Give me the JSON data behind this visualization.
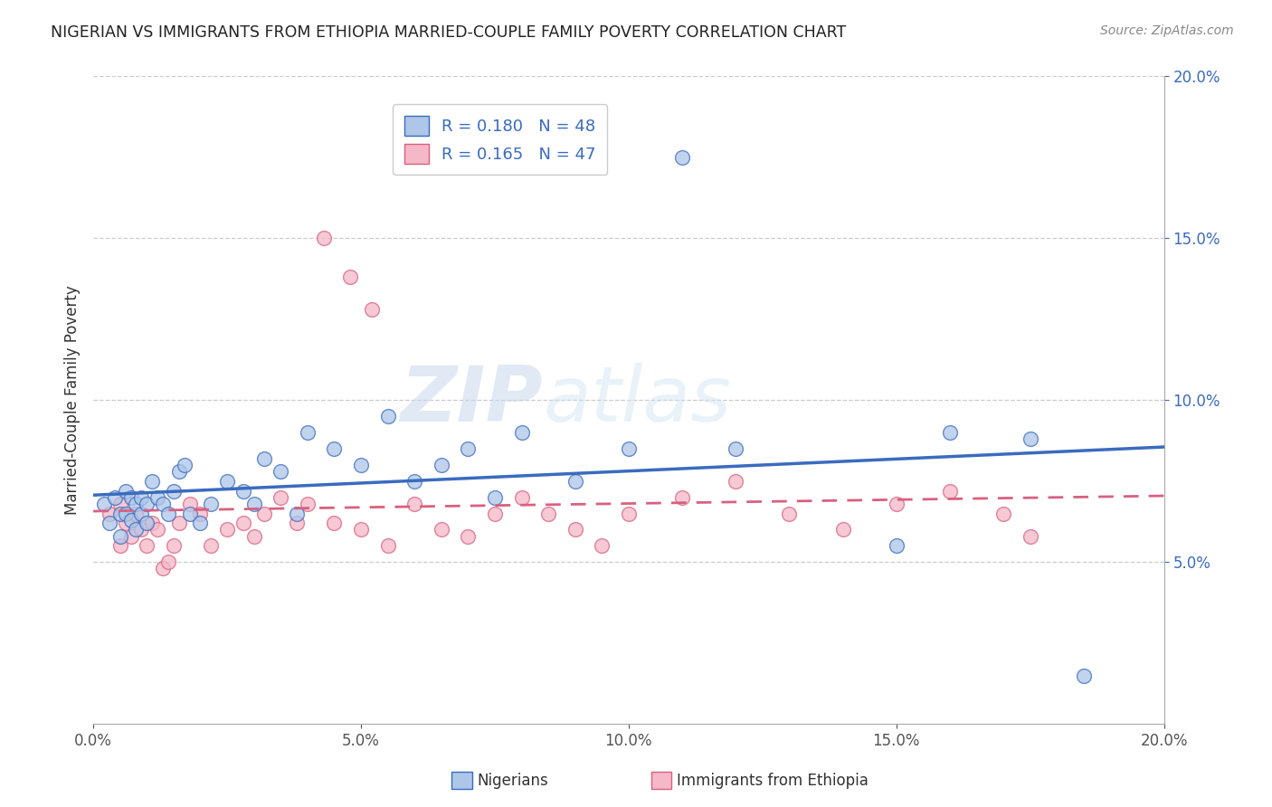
{
  "title": "NIGERIAN VS IMMIGRANTS FROM ETHIOPIA MARRIED-COUPLE FAMILY POVERTY CORRELATION CHART",
  "source": "Source: ZipAtlas.com",
  "ylabel": "Married-Couple Family Poverty",
  "xmin": 0.0,
  "xmax": 0.2,
  "ymin": 0.0,
  "ymax": 0.2,
  "xticks": [
    0.0,
    0.05,
    0.1,
    0.15,
    0.2
  ],
  "yticks": [
    0.05,
    0.1,
    0.15,
    0.2
  ],
  "xtick_labels": [
    "0.0%",
    "5.0%",
    "10.0%",
    "15.0%",
    "20.0%"
  ],
  "ytick_labels": [
    "5.0%",
    "10.0%",
    "15.0%",
    "20.0%"
  ],
  "nigerian_R": 0.18,
  "nigerian_N": 48,
  "ethiopia_R": 0.165,
  "ethiopia_N": 47,
  "nigerian_color": "#aec6e8",
  "ethiopia_color": "#f5b8c8",
  "nigerian_line_color": "#3a6bbf",
  "ethiopia_line_color": "#d96080",
  "watermark_left": "ZIP",
  "watermark_right": "atlas",
  "nigerian_x": [
    0.002,
    0.003,
    0.004,
    0.005,
    0.005,
    0.006,
    0.006,
    0.007,
    0.007,
    0.008,
    0.008,
    0.009,
    0.009,
    0.01,
    0.01,
    0.011,
    0.012,
    0.013,
    0.014,
    0.015,
    0.016,
    0.017,
    0.018,
    0.02,
    0.022,
    0.025,
    0.028,
    0.03,
    0.032,
    0.035,
    0.038,
    0.04,
    0.045,
    0.05,
    0.055,
    0.06,
    0.065,
    0.07,
    0.075,
    0.08,
    0.09,
    0.1,
    0.11,
    0.12,
    0.15,
    0.16,
    0.175,
    0.185
  ],
  "nigerian_y": [
    0.068,
    0.062,
    0.07,
    0.065,
    0.058,
    0.072,
    0.065,
    0.063,
    0.07,
    0.068,
    0.06,
    0.065,
    0.07,
    0.068,
    0.062,
    0.075,
    0.07,
    0.068,
    0.065,
    0.072,
    0.078,
    0.08,
    0.065,
    0.062,
    0.068,
    0.075,
    0.072,
    0.068,
    0.082,
    0.078,
    0.065,
    0.09,
    0.085,
    0.08,
    0.095,
    0.075,
    0.08,
    0.085,
    0.07,
    0.09,
    0.075,
    0.085,
    0.175,
    0.085,
    0.055,
    0.09,
    0.088,
    0.015
  ],
  "ethiopia_x": [
    0.003,
    0.005,
    0.005,
    0.006,
    0.007,
    0.008,
    0.009,
    0.01,
    0.011,
    0.012,
    0.013,
    0.014,
    0.015,
    0.016,
    0.018,
    0.02,
    0.022,
    0.025,
    0.028,
    0.03,
    0.032,
    0.035,
    0.038,
    0.04,
    0.043,
    0.045,
    0.048,
    0.05,
    0.052,
    0.055,
    0.06,
    0.065,
    0.07,
    0.075,
    0.08,
    0.085,
    0.09,
    0.095,
    0.1,
    0.11,
    0.12,
    0.13,
    0.14,
    0.15,
    0.16,
    0.17,
    0.175
  ],
  "ethiopia_y": [
    0.065,
    0.068,
    0.055,
    0.062,
    0.058,
    0.065,
    0.06,
    0.055,
    0.062,
    0.06,
    0.048,
    0.05,
    0.055,
    0.062,
    0.068,
    0.065,
    0.055,
    0.06,
    0.062,
    0.058,
    0.065,
    0.07,
    0.062,
    0.068,
    0.15,
    0.062,
    0.138,
    0.06,
    0.128,
    0.055,
    0.068,
    0.06,
    0.058,
    0.065,
    0.07,
    0.065,
    0.06,
    0.055,
    0.065,
    0.07,
    0.075,
    0.065,
    0.06,
    0.068,
    0.072,
    0.065,
    0.058
  ]
}
